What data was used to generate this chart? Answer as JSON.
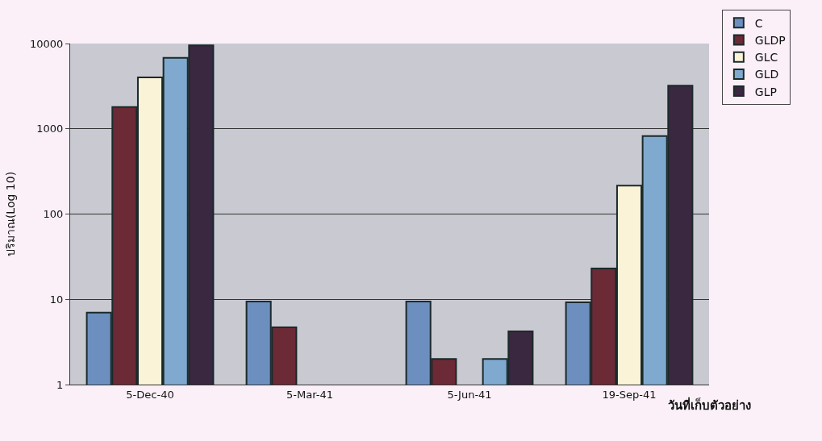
{
  "chart_data": {
    "type": "bar",
    "xlabel": "วันที่เก็บตัวอย่าง",
    "ylabel": "ปริมาณ(Log 10)",
    "categories": [
      "5-Dec-40",
      "5-Mar-41",
      "5-Jun-41",
      "19-Sep-41"
    ],
    "series": [
      {
        "name": "C",
        "color": "#6d8fc0",
        "values": [
          7,
          9.4,
          9.4,
          9.2
        ]
      },
      {
        "name": "GLDP",
        "color": "#6b2a35",
        "values": [
          1800,
          4.7,
          2,
          23
        ]
      },
      {
        "name": "GLC",
        "color": "#fbf3d8",
        "values": [
          4000,
          null,
          null,
          215
        ]
      },
      {
        "name": "GLD",
        "color": "#7fa9cf",
        "values": [
          6800,
          null,
          2,
          820
        ]
      },
      {
        "name": "GLP",
        "color": "#3a2740",
        "values": [
          9500,
          null,
          4.2,
          3200
        ]
      }
    ],
    "log": true,
    "ylim": [
      1,
      10000
    ],
    "yticks": [
      1,
      10,
      100,
      1000,
      10000
    ],
    "grid": "y",
    "legend": "top right"
  }
}
